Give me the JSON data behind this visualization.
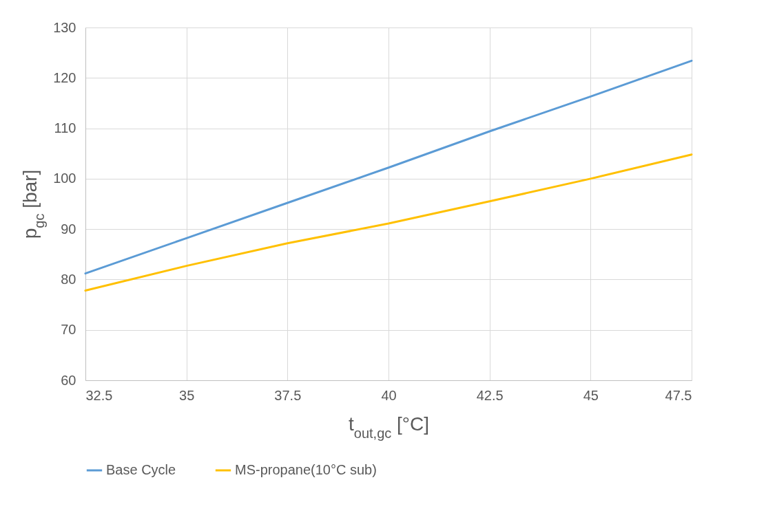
{
  "chart_data": {
    "type": "line",
    "xlabel": "t$_{out,gc}$ [°C]",
    "ylabel": "p$_{gc}$ [bar]",
    "x": [
      32.5,
      35,
      37.5,
      40,
      42.5,
      45,
      47.5
    ],
    "series": [
      {
        "name": "Base Cycle",
        "color": "#5b9bd5",
        "values": [
          81.2,
          88.2,
          95.2,
          102.2,
          109.4,
          116.3,
          123.4
        ]
      },
      {
        "name": "MS-propane(10°C sub)",
        "color": "#ffc000",
        "values": [
          77.8,
          82.7,
          87.2,
          91.1,
          95.5,
          100,
          104.8
        ]
      }
    ],
    "xlim": [
      32.5,
      47.5
    ],
    "xticks": [
      32.5,
      35,
      37.5,
      40,
      42.5,
      45,
      47.5
    ],
    "ylim": [
      60,
      130
    ],
    "yticks": [
      60,
      70,
      80,
      90,
      100,
      110,
      120,
      130
    ],
    "grid": true,
    "legend": "bottom",
    "marker": "none",
    "line_style": "solid"
  }
}
